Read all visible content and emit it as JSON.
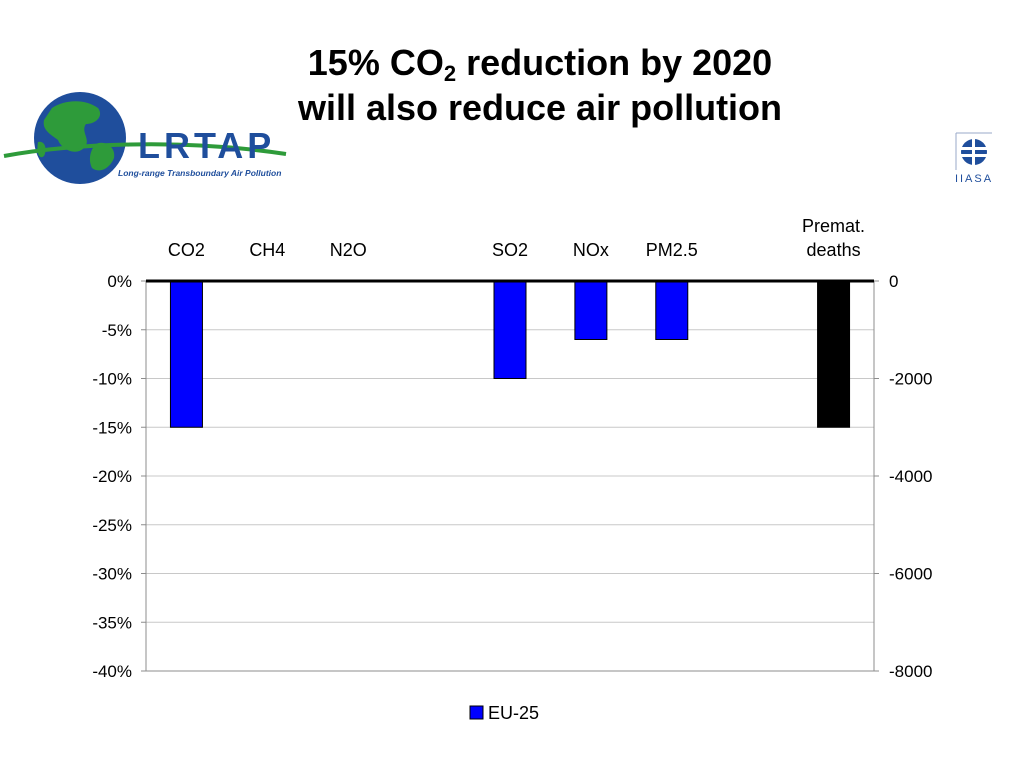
{
  "slide": {
    "title_line1_before_sub": "15% CO",
    "title_line1_sub": "2",
    "title_line1_after_sub": " reduction by 2020",
    "title_line2": "will also reduce air pollution"
  },
  "logos": {
    "lrtap_wordmark": "LRTAP",
    "lrtap_tagline": "Long-range Transboundary Air Pollution",
    "iiasa_wordmark": "IIASA"
  },
  "colors": {
    "series_blue": "#0000ff",
    "deaths_black": "#000000",
    "gridline": "#c8c8c8",
    "lrtap_blue": "#1f4e9c",
    "globe_green": "#2e9b3a"
  },
  "chart_data": {
    "type": "bar",
    "categories": [
      "CO2",
      "CH4",
      "N2O",
      "",
      "SO2",
      "NOx",
      "PM2.5",
      "",
      "Premat. deaths"
    ],
    "category_labels": [
      {
        "lines": [
          "CO2"
        ]
      },
      {
        "lines": [
          "CH4"
        ]
      },
      {
        "lines": [
          "N2O"
        ]
      },
      {
        "lines": []
      },
      {
        "lines": [
          "SO2"
        ]
      },
      {
        "lines": [
          "NOx"
        ]
      },
      {
        "lines": [
          "PM2.5"
        ]
      },
      {
        "lines": []
      },
      {
        "lines": [
          "Premat.",
          "deaths"
        ]
      }
    ],
    "series": [
      {
        "name": "EU-25",
        "axis": "left",
        "unit": "%",
        "values": [
          -15,
          0,
          0,
          null,
          -10,
          -6,
          -6,
          null,
          null
        ]
      },
      {
        "name": "",
        "axis": "right",
        "values": [
          null,
          null,
          null,
          null,
          null,
          null,
          null,
          null,
          -3000
        ]
      }
    ],
    "left_axis": {
      "ylim": [
        -40,
        0
      ],
      "ticks": [
        0,
        -5,
        -10,
        -15,
        -20,
        -25,
        -30,
        -35,
        -40
      ],
      "tick_labels": [
        "0%",
        "-5%",
        "-10%",
        "-15%",
        "-20%",
        "-25%",
        "-30%",
        "-35%",
        "-40%"
      ]
    },
    "right_axis": {
      "ylim": [
        -8000,
        0
      ],
      "ticks": [
        0,
        -2000,
        -4000,
        -6000,
        -8000
      ],
      "tick_labels": [
        "0",
        "-2000",
        "-4000",
        "-6000",
        "-8000"
      ]
    },
    "legend": {
      "entries": [
        "EU-25"
      ],
      "position": "bottom"
    },
    "grid": true
  }
}
